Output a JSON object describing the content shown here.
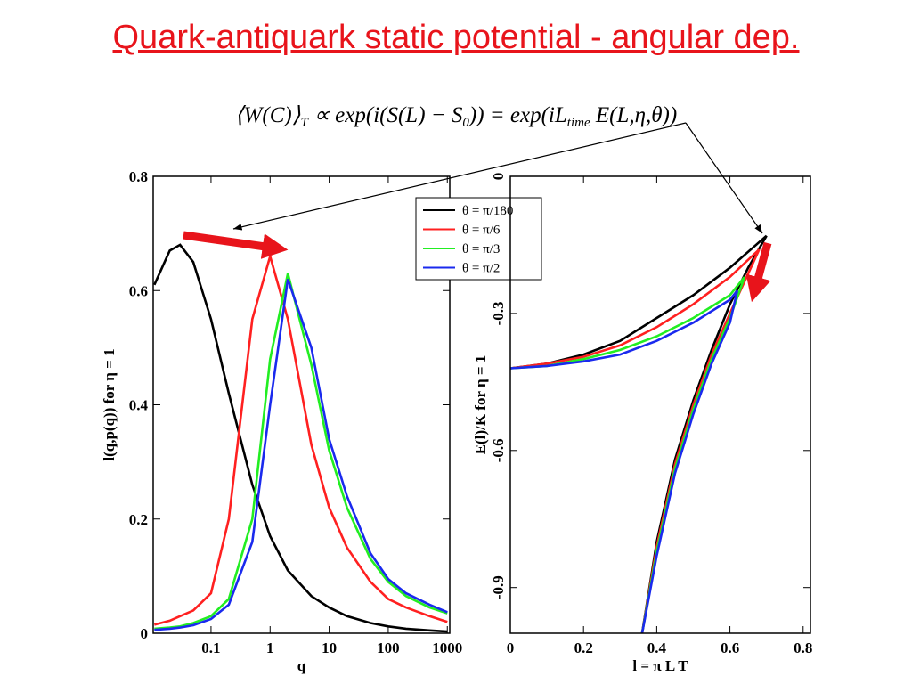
{
  "title": "Quark-antiquark static potential - angular dep.",
  "formula": [
    {
      "text": "⟨W(C)⟩",
      "sub": false
    },
    {
      "text": "T",
      "sub": true
    },
    {
      "text": " ∝ exp(i(S(L) − S",
      "sub": false
    },
    {
      "text": "0",
      "sub": true
    },
    {
      "text": ")) = exp(iL",
      "sub": false
    },
    {
      "text": "time",
      "sub": true
    },
    {
      "text": " E(L,η,θ))",
      "sub": false
    }
  ],
  "chart_data": [
    {
      "type": "line",
      "xscale": "log",
      "xlabel": "q",
      "ylabel": "l(q,p(q))  for η = 1",
      "xlim": [
        0.0105,
        1100
      ],
      "xticks": [
        0.1,
        1,
        10,
        100,
        1000
      ],
      "ylim": [
        0,
        0.8
      ],
      "yticks": [
        0,
        0.2,
        0.4,
        0.6,
        0.8
      ],
      "legend": "upper right",
      "x": [
        0.011,
        0.02,
        0.03,
        0.05,
        0.1,
        0.2,
        0.5,
        1,
        2,
        5,
        10,
        20,
        50,
        100,
        200,
        500,
        1000
      ],
      "series": [
        {
          "name": "θ = π/180",
          "color": "#000000",
          "values": [
            0.61,
            0.67,
            0.68,
            0.65,
            0.55,
            0.42,
            0.26,
            0.17,
            0.11,
            0.065,
            0.045,
            0.03,
            0.018,
            0.012,
            0.008,
            0.005,
            0.003
          ]
        },
        {
          "name": "θ = π/6",
          "color": "#ff2020",
          "values": [
            0.015,
            0.022,
            0.03,
            0.04,
            0.07,
            0.2,
            0.55,
            0.66,
            0.55,
            0.33,
            0.22,
            0.15,
            0.09,
            0.06,
            0.045,
            0.03,
            0.02
          ]
        },
        {
          "name": "θ = π/3",
          "color": "#22ee22",
          "values": [
            0.008,
            0.01,
            0.012,
            0.018,
            0.03,
            0.06,
            0.2,
            0.48,
            0.63,
            0.47,
            0.32,
            0.22,
            0.13,
            0.09,
            0.065,
            0.045,
            0.035
          ]
        },
        {
          "name": "θ = π/2",
          "color": "#1a2aee",
          "values": [
            0.006,
            0.008,
            0.01,
            0.014,
            0.025,
            0.05,
            0.16,
            0.4,
            0.62,
            0.5,
            0.34,
            0.24,
            0.14,
            0.095,
            0.07,
            0.05,
            0.037
          ]
        }
      ]
    },
    {
      "type": "line",
      "xlabel": "l = π L T",
      "ylabel": "E(l)/K  for η = 1",
      "xlim": [
        0,
        0.82
      ],
      "xticks": [
        0,
        0.2,
        0.4,
        0.6,
        0.8
      ],
      "ylim": [
        -1,
        0
      ],
      "yticks": [
        0,
        -0.3,
        -0.6,
        -0.9
      ],
      "series": [
        {
          "name": "θ = π/180",
          "color": "#000000",
          "x": [
            0,
            0.1,
            0.2,
            0.3,
            0.4,
            0.5,
            0.6,
            0.7,
            null,
            0.36,
            0.4,
            0.45,
            0.5,
            0.55,
            0.6,
            0.65,
            0.7
          ],
          "values": [
            -0.42,
            -0.41,
            -0.39,
            -0.36,
            -0.31,
            -0.26,
            -0.2,
            -0.13,
            null,
            -1,
            -0.8,
            -0.62,
            -0.49,
            -0.38,
            -0.28,
            -0.2,
            -0.13
          ]
        },
        {
          "name": "θ = π/6",
          "color": "#ff2020",
          "x": [
            0,
            0.1,
            0.2,
            0.3,
            0.4,
            0.5,
            0.6,
            0.68,
            null,
            0.36,
            0.4,
            0.45,
            0.5,
            0.55,
            0.6,
            0.68
          ],
          "values": [
            -0.42,
            -0.41,
            -0.395,
            -0.37,
            -0.33,
            -0.28,
            -0.22,
            -0.16,
            null,
            -1,
            -0.81,
            -0.63,
            -0.5,
            -0.39,
            -0.3,
            -0.16
          ]
        },
        {
          "name": "θ = π/3",
          "color": "#22ee22",
          "x": [
            0,
            0.1,
            0.2,
            0.3,
            0.4,
            0.5,
            0.6,
            0.64,
            null,
            0.36,
            0.4,
            0.45,
            0.5,
            0.55,
            0.6,
            0.64
          ],
          "values": [
            -0.42,
            -0.415,
            -0.4,
            -0.38,
            -0.35,
            -0.31,
            -0.26,
            -0.22,
            null,
            -1,
            -0.82,
            -0.64,
            -0.51,
            -0.4,
            -0.31,
            -0.22
          ]
        },
        {
          "name": "θ = π/2",
          "color": "#1a2aee",
          "x": [
            0,
            0.1,
            0.2,
            0.3,
            0.4,
            0.5,
            0.6,
            0.62,
            null,
            0.36,
            0.4,
            0.45,
            0.5,
            0.55,
            0.6,
            0.62
          ],
          "values": [
            -0.42,
            -0.415,
            -0.405,
            -0.39,
            -0.36,
            -0.32,
            -0.27,
            -0.25,
            null,
            -1,
            -0.83,
            -0.65,
            -0.52,
            -0.41,
            -0.32,
            -0.25
          ]
        }
      ]
    }
  ]
}
